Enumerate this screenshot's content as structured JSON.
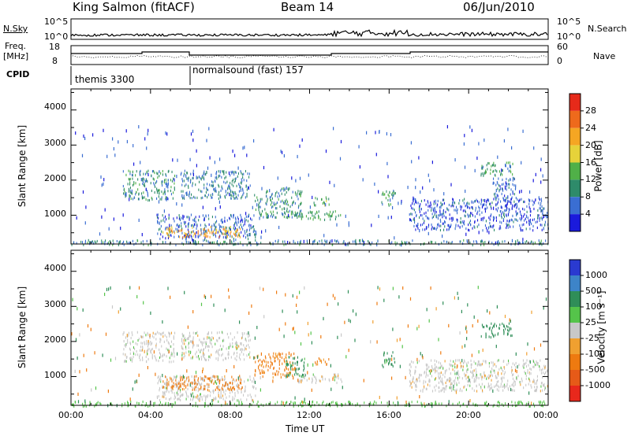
{
  "header": {
    "station": "King Salmon (fitACF)",
    "beam": "Beam 14",
    "date": "06/Jun/2010"
  },
  "top_panels": {
    "nsky_label": "N.Sky",
    "nsearch_label": "N.Search",
    "freq_label_1": "Freq.",
    "freq_label_2": "[MHz]",
    "nave_label": "Nave",
    "cpid_label": "CPID",
    "nsky_ticks": [
      "10^5",
      "10^0"
    ],
    "nsearch_ticks": [
      "10^5",
      "10^0"
    ],
    "freq_ticks": [
      "18",
      "8"
    ],
    "nave_ticks": [
      "60",
      "0"
    ],
    "cpid_modes": [
      {
        "label": "themis 3300",
        "start": 0.0,
        "end": 6.0
      },
      {
        "label": "normalsound (fast) 157",
        "start": 6.0,
        "end": 24.0
      }
    ]
  },
  "chart_data": [
    {
      "type": "heatmap",
      "title": "",
      "xlabel": "Time UT",
      "ylabel": "Slant Range [km]",
      "x_units": "hours UT",
      "xlim": [
        0,
        24
      ],
      "ylim": [
        180,
        4600
      ],
      "xticks": [
        "00:00",
        "04:00",
        "08:00",
        "12:00",
        "16:00",
        "20:00",
        "00:00"
      ],
      "yticks": [
        "1000",
        "2000",
        "3000",
        "4000"
      ],
      "colorbar_label": "Power [dB]",
      "colorbar_ticks": [
        "4",
        "8",
        "12",
        "16",
        "20",
        "24",
        "28"
      ],
      "colorbar_colors": [
        "#1a1adc",
        "#3a6ed2",
        "#2e8b6a",
        "#50b048",
        "#e6d23a",
        "#f5a623",
        "#ee6a1c",
        "#e62a1a"
      ],
      "clusters": [
        {
          "t": [
            4.3,
            9.3
          ],
          "r": [
            330,
            1050
          ],
          "value": 6
        },
        {
          "t": [
            4.6,
            8.6
          ],
          "r": [
            400,
            700
          ],
          "value": 22
        },
        {
          "t": [
            2.6,
            5.2
          ],
          "r": [
            1450,
            2300
          ],
          "value": 10
        },
        {
          "t": [
            5.5,
            9.0
          ],
          "r": [
            1500,
            2300
          ],
          "value": 8
        },
        {
          "t": [
            9.2,
            11.6
          ],
          "r": [
            950,
            1800
          ],
          "value": 10
        },
        {
          "t": [
            11.2,
            13.6
          ],
          "r": [
            900,
            1150
          ],
          "value": 12
        },
        {
          "t": [
            12.2,
            13.0
          ],
          "r": [
            1300,
            1550
          ],
          "value": 13
        },
        {
          "t": [
            15.6,
            16.3
          ],
          "r": [
            1300,
            1750
          ],
          "value": 11
        },
        {
          "t": [
            17.0,
            24.0
          ],
          "r": [
            600,
            1500
          ],
          "value": 5
        },
        {
          "t": [
            20.6,
            22.2
          ],
          "r": [
            2150,
            2550
          ],
          "value": 11
        },
        {
          "t": [
            21.2,
            22.4
          ],
          "r": [
            1500,
            2100
          ],
          "value": 6
        },
        {
          "t": [
            0.0,
            24.0
          ],
          "r": [
            180,
            320
          ],
          "value": 9
        }
      ]
    },
    {
      "type": "heatmap",
      "title": "",
      "xlabel": "Time UT",
      "ylabel": "Slant Range [km]",
      "x_units": "hours UT",
      "xlim": [
        0,
        24
      ],
      "ylim": [
        180,
        4600
      ],
      "xticks": [
        "00:00",
        "04:00",
        "08:00",
        "12:00",
        "16:00",
        "20:00",
        "00:00"
      ],
      "yticks": [
        "1000",
        "2000",
        "3000",
        "4000"
      ],
      "colorbar_label": "Velocity [m s⁻¹]",
      "colorbar_ticks": [
        "1000",
        "500",
        "100",
        "25",
        "-25",
        "-100",
        "-500",
        "-1000"
      ],
      "colorbar_colors": [
        "#2a3ad0",
        "#3d84c8",
        "#2f8e58",
        "#55c44a",
        "#c8c8c8",
        "#f0a030",
        "#ee7a10",
        "#e65a18",
        "#e8281c"
      ],
      "clusters": [
        {
          "t": [
            4.3,
            9.3
          ],
          "r": [
            330,
            1050
          ],
          "value": 0
        },
        {
          "t": [
            4.6,
            8.6
          ],
          "r": [
            650,
            1050
          ],
          "value": -200
        },
        {
          "t": [
            2.6,
            5.2
          ],
          "r": [
            1450,
            2300
          ],
          "value": 0
        },
        {
          "t": [
            5.5,
            9.0
          ],
          "r": [
            1500,
            2300
          ],
          "value": 0
        },
        {
          "t": [
            9.2,
            11.3
          ],
          "r": [
            1000,
            1700
          ],
          "value": -150
        },
        {
          "t": [
            10.8,
            11.8
          ],
          "r": [
            1000,
            1600
          ],
          "value": 150
        },
        {
          "t": [
            11.2,
            13.6
          ],
          "r": [
            850,
            1100
          ],
          "value": 0
        },
        {
          "t": [
            12.2,
            13.0
          ],
          "r": [
            1350,
            1550
          ],
          "value": -120
        },
        {
          "t": [
            15.6,
            16.3
          ],
          "r": [
            1300,
            1750
          ],
          "value": 150
        },
        {
          "t": [
            17.0,
            24.0
          ],
          "r": [
            600,
            1500
          ],
          "value": 0
        },
        {
          "t": [
            20.6,
            22.2
          ],
          "r": [
            2150,
            2550
          ],
          "value": 200
        },
        {
          "t": [
            0.0,
            24.0
          ],
          "r": [
            180,
            320
          ],
          "value": 60
        }
      ]
    }
  ]
}
